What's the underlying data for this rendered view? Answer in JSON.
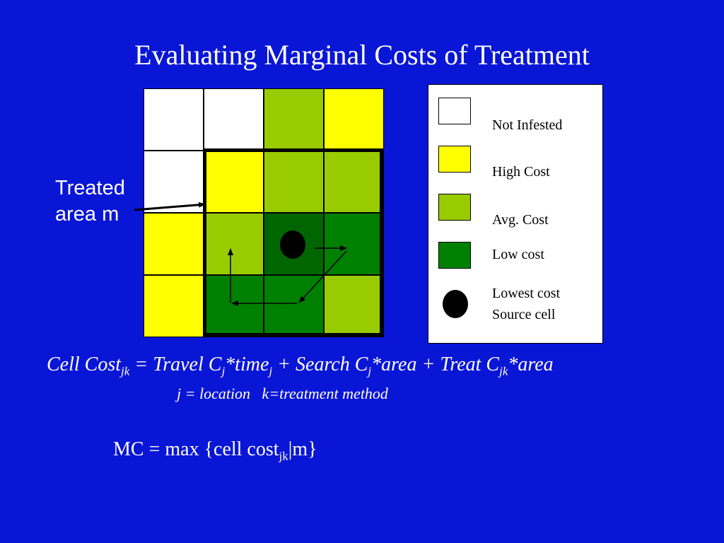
{
  "title": "Evaluating Marginal Costs of Treatment",
  "colors": {
    "background": "#0a16d6",
    "not_infested": "#ffffff",
    "high_cost": "#ffff00",
    "avg_cost": "#99cc00",
    "low_cost": "#008000",
    "source_cell": "#006600",
    "text": "#ffffff"
  },
  "grid": {
    "rows": [
      [
        "not_infested",
        "not_infested",
        "avg_cost",
        "high_cost"
      ],
      [
        "not_infested",
        "high_cost",
        "avg_cost",
        "avg_cost"
      ],
      [
        "high_cost",
        "avg_cost",
        "source_cell",
        "low_cost"
      ],
      [
        "high_cost",
        "low_cost",
        "low_cost",
        "avg_cost"
      ]
    ]
  },
  "treated_label_line1": "Treated",
  "treated_label_line2": "area m",
  "legend": {
    "items": [
      {
        "label": "Not Infested",
        "swatch": "not_infested"
      },
      {
        "label": "High Cost",
        "swatch": "high_cost"
      },
      {
        "label": "Avg. Cost",
        "swatch": "avg_cost"
      },
      {
        "label": "Low cost",
        "swatch": "low_cost"
      }
    ],
    "source_line1": "Lowest cost",
    "source_line2": "Source cell"
  },
  "formula": {
    "p1": "Cell Cost",
    "s1": "jk",
    "p2": " = Travel C",
    "s2": "j",
    "p3": "*time",
    "s3": "j",
    "p4": " + Search C",
    "s4": "j",
    "p5": "*area + Treat C",
    "s5": "jk",
    "p6": "*area"
  },
  "formula_note": "j = location   k=treatment method",
  "mc": {
    "p1": "MC = max {cell cost",
    "s1": "jk",
    "p2": "|m}"
  }
}
